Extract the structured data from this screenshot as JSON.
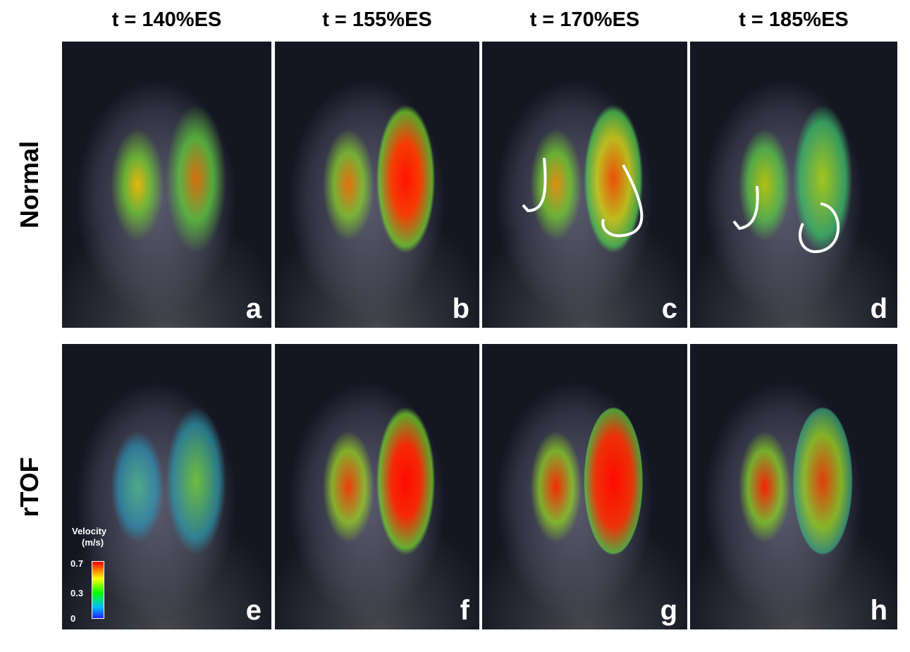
{
  "columns": [
    "t = 140%ES",
    "t = 155%ES",
    "t = 170%ES",
    "t = 185%ES"
  ],
  "rows": [
    "Normal",
    "rTOF"
  ],
  "panels": [
    [
      "a",
      "b",
      "c",
      "d"
    ],
    [
      "e",
      "f",
      "g",
      "h"
    ]
  ],
  "colorbar": {
    "title": "Velocity",
    "unit": "(m/s)",
    "ticks": [
      "0.7",
      "0.3",
      "0"
    ]
  }
}
